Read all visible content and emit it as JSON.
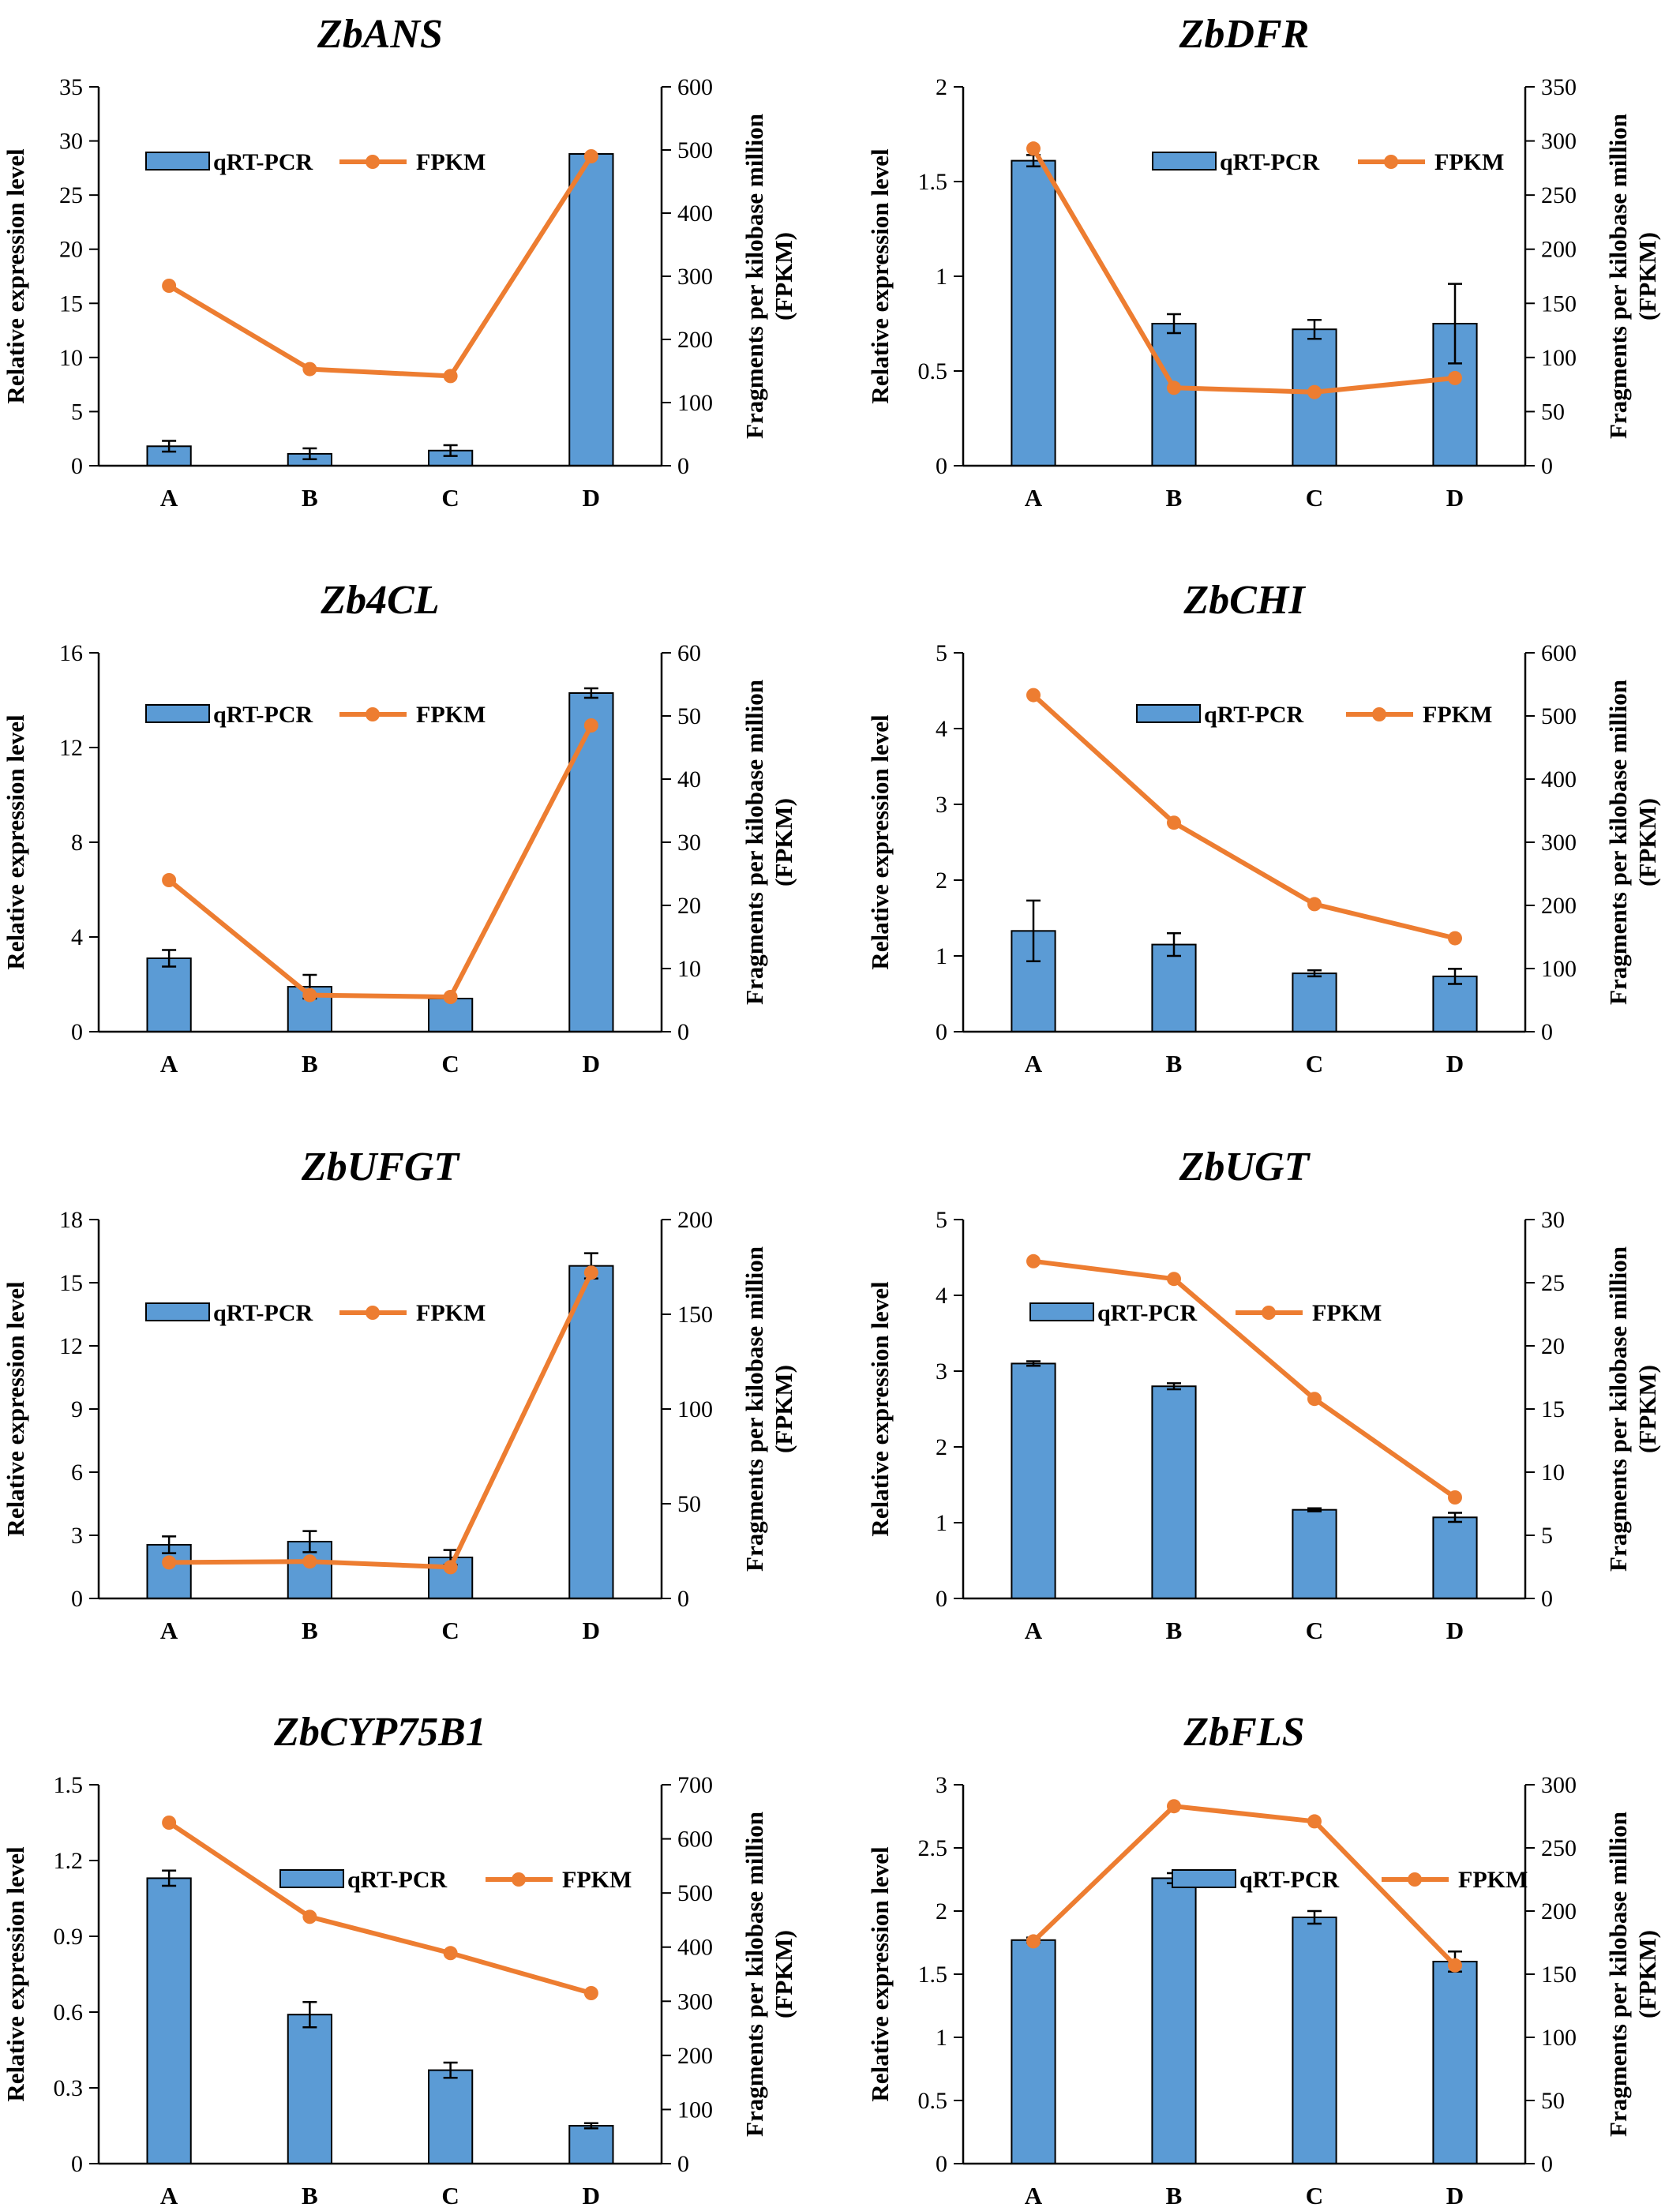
{
  "colors": {
    "bar": "#5B9BD5",
    "bar_stroke": "#000000",
    "line": "#ED7D31"
  },
  "chart_data": [
    {
      "type": "bar",
      "title": "ZbANS",
      "categories": [
        "A",
        "B",
        "C",
        "D"
      ],
      "ylabel": "Relative expression level",
      "y2label_1": "Fragments per kilobase million",
      "y2label_2": "(FPKM)",
      "ylim": [
        0,
        35
      ],
      "yticks": [
        "0",
        "5",
        "10",
        "15",
        "20",
        "25",
        "30",
        "35"
      ],
      "y2lim": [
        0,
        600
      ],
      "y2ticks": [
        "0",
        "100",
        "200",
        "300",
        "400",
        "500",
        "600"
      ],
      "legend_position": "top-left",
      "series": [
        {
          "name": "qRT-PCR",
          "type": "bar",
          "axis": "left",
          "values": [
            1.8,
            1.1,
            1.4,
            28.8
          ],
          "errors": [
            0.5,
            0.5,
            0.5,
            0
          ]
        },
        {
          "name": "FPKM",
          "type": "line",
          "axis": "right",
          "values": [
            285,
            153,
            142,
            490
          ]
        }
      ]
    },
    {
      "type": "bar",
      "title": "ZbDFR",
      "categories": [
        "A",
        "B",
        "C",
        "D"
      ],
      "ylabel": "Relative expression level",
      "y2label_1": "Fragments per kilobase million",
      "y2label_2": "(FPKM)",
      "ylim": [
        0,
        2
      ],
      "yticks": [
        "0",
        "0.5",
        "1",
        "1.5",
        "2"
      ],
      "y2lim": [
        0,
        350
      ],
      "y2ticks": [
        "0",
        "50",
        "100",
        "150",
        "200",
        "250",
        "300",
        "350"
      ],
      "legend_position": "top-right",
      "series": [
        {
          "name": "qRT-PCR",
          "type": "bar",
          "axis": "left",
          "values": [
            1.61,
            0.75,
            0.72,
            0.75
          ],
          "errors": [
            0.03,
            0.05,
            0.05,
            0.21
          ]
        },
        {
          "name": "FPKM",
          "type": "line",
          "axis": "right",
          "values": [
            293,
            72,
            68,
            81
          ]
        }
      ]
    },
    {
      "type": "bar",
      "title": "Zb4CL",
      "categories": [
        "A",
        "B",
        "C",
        "D"
      ],
      "ylabel": "Relative expression level",
      "y2label_1": "Fragments per kilobase million",
      "y2label_2": "(FPKM)",
      "ylim": [
        0,
        16
      ],
      "yticks": [
        "0",
        "4",
        "8",
        "12",
        "16"
      ],
      "y2lim": [
        0,
        60
      ],
      "y2ticks": [
        "0",
        "10",
        "20",
        "30",
        "40",
        "50",
        "60"
      ],
      "legend_position": "top-left",
      "series": [
        {
          "name": "qRT-PCR",
          "type": "bar",
          "axis": "left",
          "values": [
            3.1,
            1.9,
            1.4,
            14.3
          ],
          "errors": [
            0.35,
            0.5,
            0,
            0.2
          ]
        },
        {
          "name": "FPKM",
          "type": "line",
          "axis": "right",
          "values": [
            24,
            5.8,
            5.5,
            48.5
          ]
        }
      ]
    },
    {
      "type": "bar",
      "title": "ZbCHI",
      "categories": [
        "A",
        "B",
        "C",
        "D"
      ],
      "ylabel": "Relative expression level",
      "y2label_1": "Fragments per kilobase million",
      "y2label_2": "(FPKM)",
      "ylim": [
        0,
        5
      ],
      "yticks": [
        "0",
        "1",
        "2",
        "3",
        "4",
        "5"
      ],
      "y2lim": [
        0,
        600
      ],
      "y2ticks": [
        "0",
        "100",
        "200",
        "300",
        "400",
        "500",
        "600"
      ],
      "legend_position": "top-right",
      "series": [
        {
          "name": "qRT-PCR",
          "type": "bar",
          "axis": "left",
          "values": [
            1.33,
            1.15,
            0.77,
            0.73
          ],
          "errors": [
            0.4,
            0.15,
            0.04,
            0.1
          ]
        },
        {
          "name": "FPKM",
          "type": "line",
          "axis": "right",
          "values": [
            533,
            331,
            202,
            148
          ]
        }
      ]
    },
    {
      "type": "bar",
      "title": "ZbUFGT",
      "categories": [
        "A",
        "B",
        "C",
        "D"
      ],
      "ylabel": "Relative expression level",
      "y2label_1": "Fragments per kilobase million",
      "y2label_2": "(FPKM)",
      "ylim": [
        0,
        18
      ],
      "yticks": [
        "0",
        "3",
        "6",
        "9",
        "12",
        "15",
        "18"
      ],
      "y2lim": [
        0,
        200
      ],
      "y2ticks": [
        "0",
        "50",
        "100",
        "150",
        "200"
      ],
      "legend_position": "top-left",
      "series": [
        {
          "name": "qRT-PCR",
          "type": "bar",
          "axis": "left",
          "values": [
            2.55,
            2.7,
            1.95,
            15.8
          ],
          "errors": [
            0.4,
            0.5,
            0.35,
            0.6
          ]
        },
        {
          "name": "FPKM",
          "type": "line",
          "axis": "right",
          "values": [
            19,
            19.5,
            16.5,
            172
          ]
        }
      ]
    },
    {
      "type": "bar",
      "title": "ZbUGT",
      "categories": [
        "A",
        "B",
        "C",
        "D"
      ],
      "ylabel": "Relative expression level",
      "y2label_1": "Fragments per kilobase million",
      "y2label_2": "(FPKM)",
      "ylim": [
        0,
        5
      ],
      "yticks": [
        "0",
        "1",
        "2",
        "3",
        "4",
        "5"
      ],
      "y2lim": [
        0,
        30
      ],
      "y2ticks": [
        "0",
        "5",
        "10",
        "15",
        "20",
        "25",
        "30"
      ],
      "legend_position": "top-right",
      "series": [
        {
          "name": "qRT-PCR",
          "type": "bar",
          "axis": "left",
          "values": [
            3.1,
            2.8,
            1.17,
            1.07
          ],
          "errors": [
            0.03,
            0.04,
            0.02,
            0.06
          ]
        },
        {
          "name": "FPKM",
          "type": "line",
          "axis": "right",
          "values": [
            26.7,
            25.3,
            15.8,
            8
          ]
        }
      ]
    },
    {
      "type": "bar",
      "title": "ZbCYP75B1",
      "categories": [
        "A",
        "B",
        "C",
        "D"
      ],
      "ylabel": "Relative expression level",
      "y2label_1": "Fragments per kilobase million",
      "y2label_2": "(FPKM)",
      "ylim": [
        0,
        1.5
      ],
      "yticks": [
        "0",
        "0.3",
        "0.6",
        "0.9",
        "1.2",
        "1.5"
      ],
      "y2lim": [
        0,
        700
      ],
      "y2ticks": [
        "0",
        "100",
        "200",
        "300",
        "400",
        "500",
        "600",
        "700"
      ],
      "legend_position": "top-right",
      "series": [
        {
          "name": "qRT-PCR",
          "type": "bar",
          "axis": "left",
          "values": [
            1.13,
            0.59,
            0.37,
            0.15
          ],
          "errors": [
            0.03,
            0.05,
            0.03,
            0.01
          ]
        },
        {
          "name": "FPKM",
          "type": "line",
          "axis": "right",
          "values": [
            630,
            456,
            389,
            315
          ]
        }
      ]
    },
    {
      "type": "bar",
      "title": "ZbFLS",
      "categories": [
        "A",
        "B",
        "C",
        "D"
      ],
      "ylabel": "Relative expression level",
      "y2label_1": "Fragments per kilobase million",
      "y2label_2": "(FPKM)",
      "ylim": [
        0,
        3
      ],
      "yticks": [
        "0",
        "0.5",
        "1",
        "1.5",
        "2",
        "2.5",
        "3"
      ],
      "y2lim": [
        0,
        300
      ],
      "y2ticks": [
        "0",
        "50",
        "100",
        "150",
        "200",
        "250",
        "300"
      ],
      "legend_position": "top-right",
      "series": [
        {
          "name": "qRT-PCR",
          "type": "bar",
          "axis": "left",
          "values": [
            1.77,
            2.26,
            1.95,
            1.6
          ],
          "errors": [
            0.02,
            0.04,
            0.05,
            0.08
          ]
        },
        {
          "name": "FPKM",
          "type": "line",
          "axis": "right",
          "values": [
            176,
            283,
            271,
            157
          ]
        }
      ]
    }
  ]
}
